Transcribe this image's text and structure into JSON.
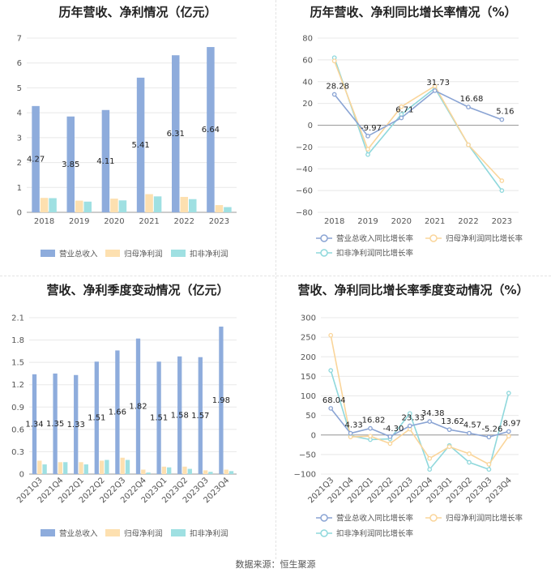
{
  "colors": {
    "revenue": "#8eacdc",
    "parent_net_profit": "#fde0b0",
    "deducted_net_profit": "#9fe0e2",
    "revenue_line": "#8aa4d4",
    "parent_line": "#fad59a",
    "deducted_line": "#8fd8dc"
  },
  "footer": "数据来源：恒生聚源",
  "chart_data": [
    {
      "type": "bar",
      "title": "历年营收、净利情况（亿元）",
      "categories": [
        "2018",
        "2019",
        "2020",
        "2021",
        "2022",
        "2023"
      ],
      "ylim": [
        0,
        7
      ],
      "yticks": [
        "0",
        "1",
        "2",
        "3",
        "4",
        "5",
        "6",
        "7"
      ],
      "series": [
        {
          "name": "营业总收入",
          "values": [
            4.27,
            3.85,
            4.11,
            5.41,
            6.31,
            6.64
          ],
          "labels": [
            "4.27",
            "3.85",
            "4.11",
            "5.41",
            "6.31",
            "6.64"
          ]
        },
        {
          "name": "归母净利润",
          "values": [
            0.58,
            0.47,
            0.55,
            0.73,
            0.62,
            0.29
          ]
        },
        {
          "name": "扣非净利润",
          "values": [
            0.57,
            0.43,
            0.48,
            0.64,
            0.53,
            0.21
          ]
        }
      ],
      "legend": "bottom"
    },
    {
      "type": "line",
      "title": "历年营收、净利同比增长率情况（%）",
      "categories": [
        "2018",
        "2019",
        "2020",
        "2021",
        "2022",
        "2023"
      ],
      "ylim": [
        -80,
        80
      ],
      "yticks": [
        "80",
        "60",
        "40",
        "20",
        "0",
        "−20",
        "−40",
        "−60",
        "−80"
      ],
      "series": [
        {
          "name": "营业总收入同比增长率",
          "values": [
            28.28,
            -9.97,
            6.71,
            31.73,
            16.68,
            5.16
          ],
          "labels": [
            "28.28",
            "-9.97",
            "6.71",
            "31.73",
            "16.68",
            "5.16"
          ]
        },
        {
          "name": "归母净利润同比增长率",
          "values": [
            59,
            -22,
            17,
            36,
            -18,
            -51
          ]
        },
        {
          "name": "扣非净利润同比增长率",
          "values": [
            62,
            -27,
            10,
            34,
            -18,
            -60
          ]
        }
      ],
      "legend": "bottom"
    },
    {
      "type": "bar",
      "title": "营收、净利季度变动情况（亿元）",
      "categories": [
        "2021Q3",
        "2021Q4",
        "2022Q1",
        "2022Q2",
        "2022Q3",
        "2022Q4",
        "2023Q1",
        "2023Q2",
        "2023Q3",
        "2023Q4"
      ],
      "ylim": [
        0,
        2.1
      ],
      "yticks": [
        "0",
        "0.3",
        "0.6",
        "0.9",
        "1.2",
        "1.5",
        "1.8",
        "2.1"
      ],
      "series": [
        {
          "name": "营业总收入",
          "values": [
            1.34,
            1.35,
            1.33,
            1.51,
            1.66,
            1.82,
            1.51,
            1.58,
            1.57,
            1.98
          ],
          "labels": [
            "1.34",
            "1.35",
            "1.33",
            "1.51",
            "1.66",
            "1.82",
            "1.51",
            "1.58",
            "1.57",
            "1.98"
          ]
        },
        {
          "name": "归母净利润",
          "values": [
            0.18,
            0.16,
            0.16,
            0.18,
            0.22,
            0.06,
            0.1,
            0.1,
            0.05,
            0.06
          ]
        },
        {
          "name": "扣非净利润",
          "values": [
            0.13,
            0.16,
            0.13,
            0.19,
            0.19,
            0.02,
            0.09,
            0.07,
            0.03,
            0.04
          ]
        }
      ],
      "legend": "bottom"
    },
    {
      "type": "line",
      "title": "营收、净利同比增长率季度变动情况（%）",
      "categories": [
        "2021Q3",
        "2021Q4",
        "2022Q1",
        "2022Q2",
        "2022Q3",
        "2022Q4",
        "2023Q1",
        "2023Q2",
        "2023Q3",
        "2023Q4"
      ],
      "ylim": [
        -100,
        300
      ],
      "yticks": [
        "300",
        "250",
        "200",
        "150",
        "100",
        "50",
        "0",
        "−50",
        "−100"
      ],
      "series": [
        {
          "name": "营业总收入同比增长率",
          "values": [
            68.04,
            4.33,
            16.82,
            -4.3,
            23.33,
            34.38,
            13.62,
            4.57,
            -5.26,
            8.97
          ],
          "labels": [
            "68.04",
            "4.33",
            "16.82",
            "-4.30",
            "23.33",
            "34.38",
            "13.62",
            "4.57",
            "-5.26",
            "8.97"
          ]
        },
        {
          "name": "归母净利润同比增长率",
          "values": [
            255,
            -5,
            -3,
            -22,
            15,
            -60,
            -30,
            -48,
            -75,
            -3
          ]
        },
        {
          "name": "扣非净利润同比增长率",
          "values": [
            165,
            -2,
            -12,
            -10,
            55,
            -88,
            -27,
            -70,
            -88,
            107
          ]
        }
      ],
      "legend": "bottom"
    }
  ]
}
